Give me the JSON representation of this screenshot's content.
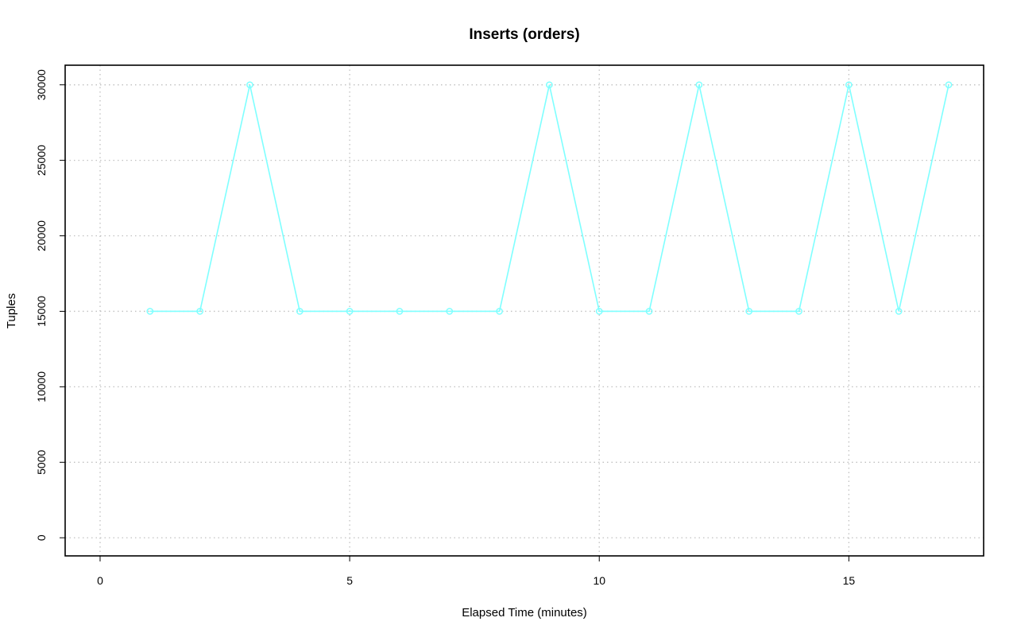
{
  "chart_data": {
    "type": "line",
    "title": "Inserts (orders)",
    "xlabel": "Elapsed Time (minutes)",
    "ylabel": "Tuples",
    "xlim": [
      -0.7,
      17.7
    ],
    "ylim": [
      -1200,
      31300
    ],
    "x_ticks": [
      0,
      5,
      10,
      15
    ],
    "y_ticks": [
      0,
      5000,
      10000,
      15000,
      20000,
      25000,
      30000
    ],
    "grid": true,
    "legend": "none",
    "series_color": "#7fffff",
    "x": [
      1,
      2,
      3,
      4,
      5,
      6,
      7,
      8,
      9,
      10,
      11,
      12,
      13,
      14,
      15,
      16,
      17
    ],
    "values": [
      15000,
      15000,
      30000,
      15000,
      15000,
      15000,
      15000,
      15000,
      30000,
      15000,
      15000,
      30000,
      15000,
      15000,
      30000,
      15000,
      30000
    ]
  }
}
